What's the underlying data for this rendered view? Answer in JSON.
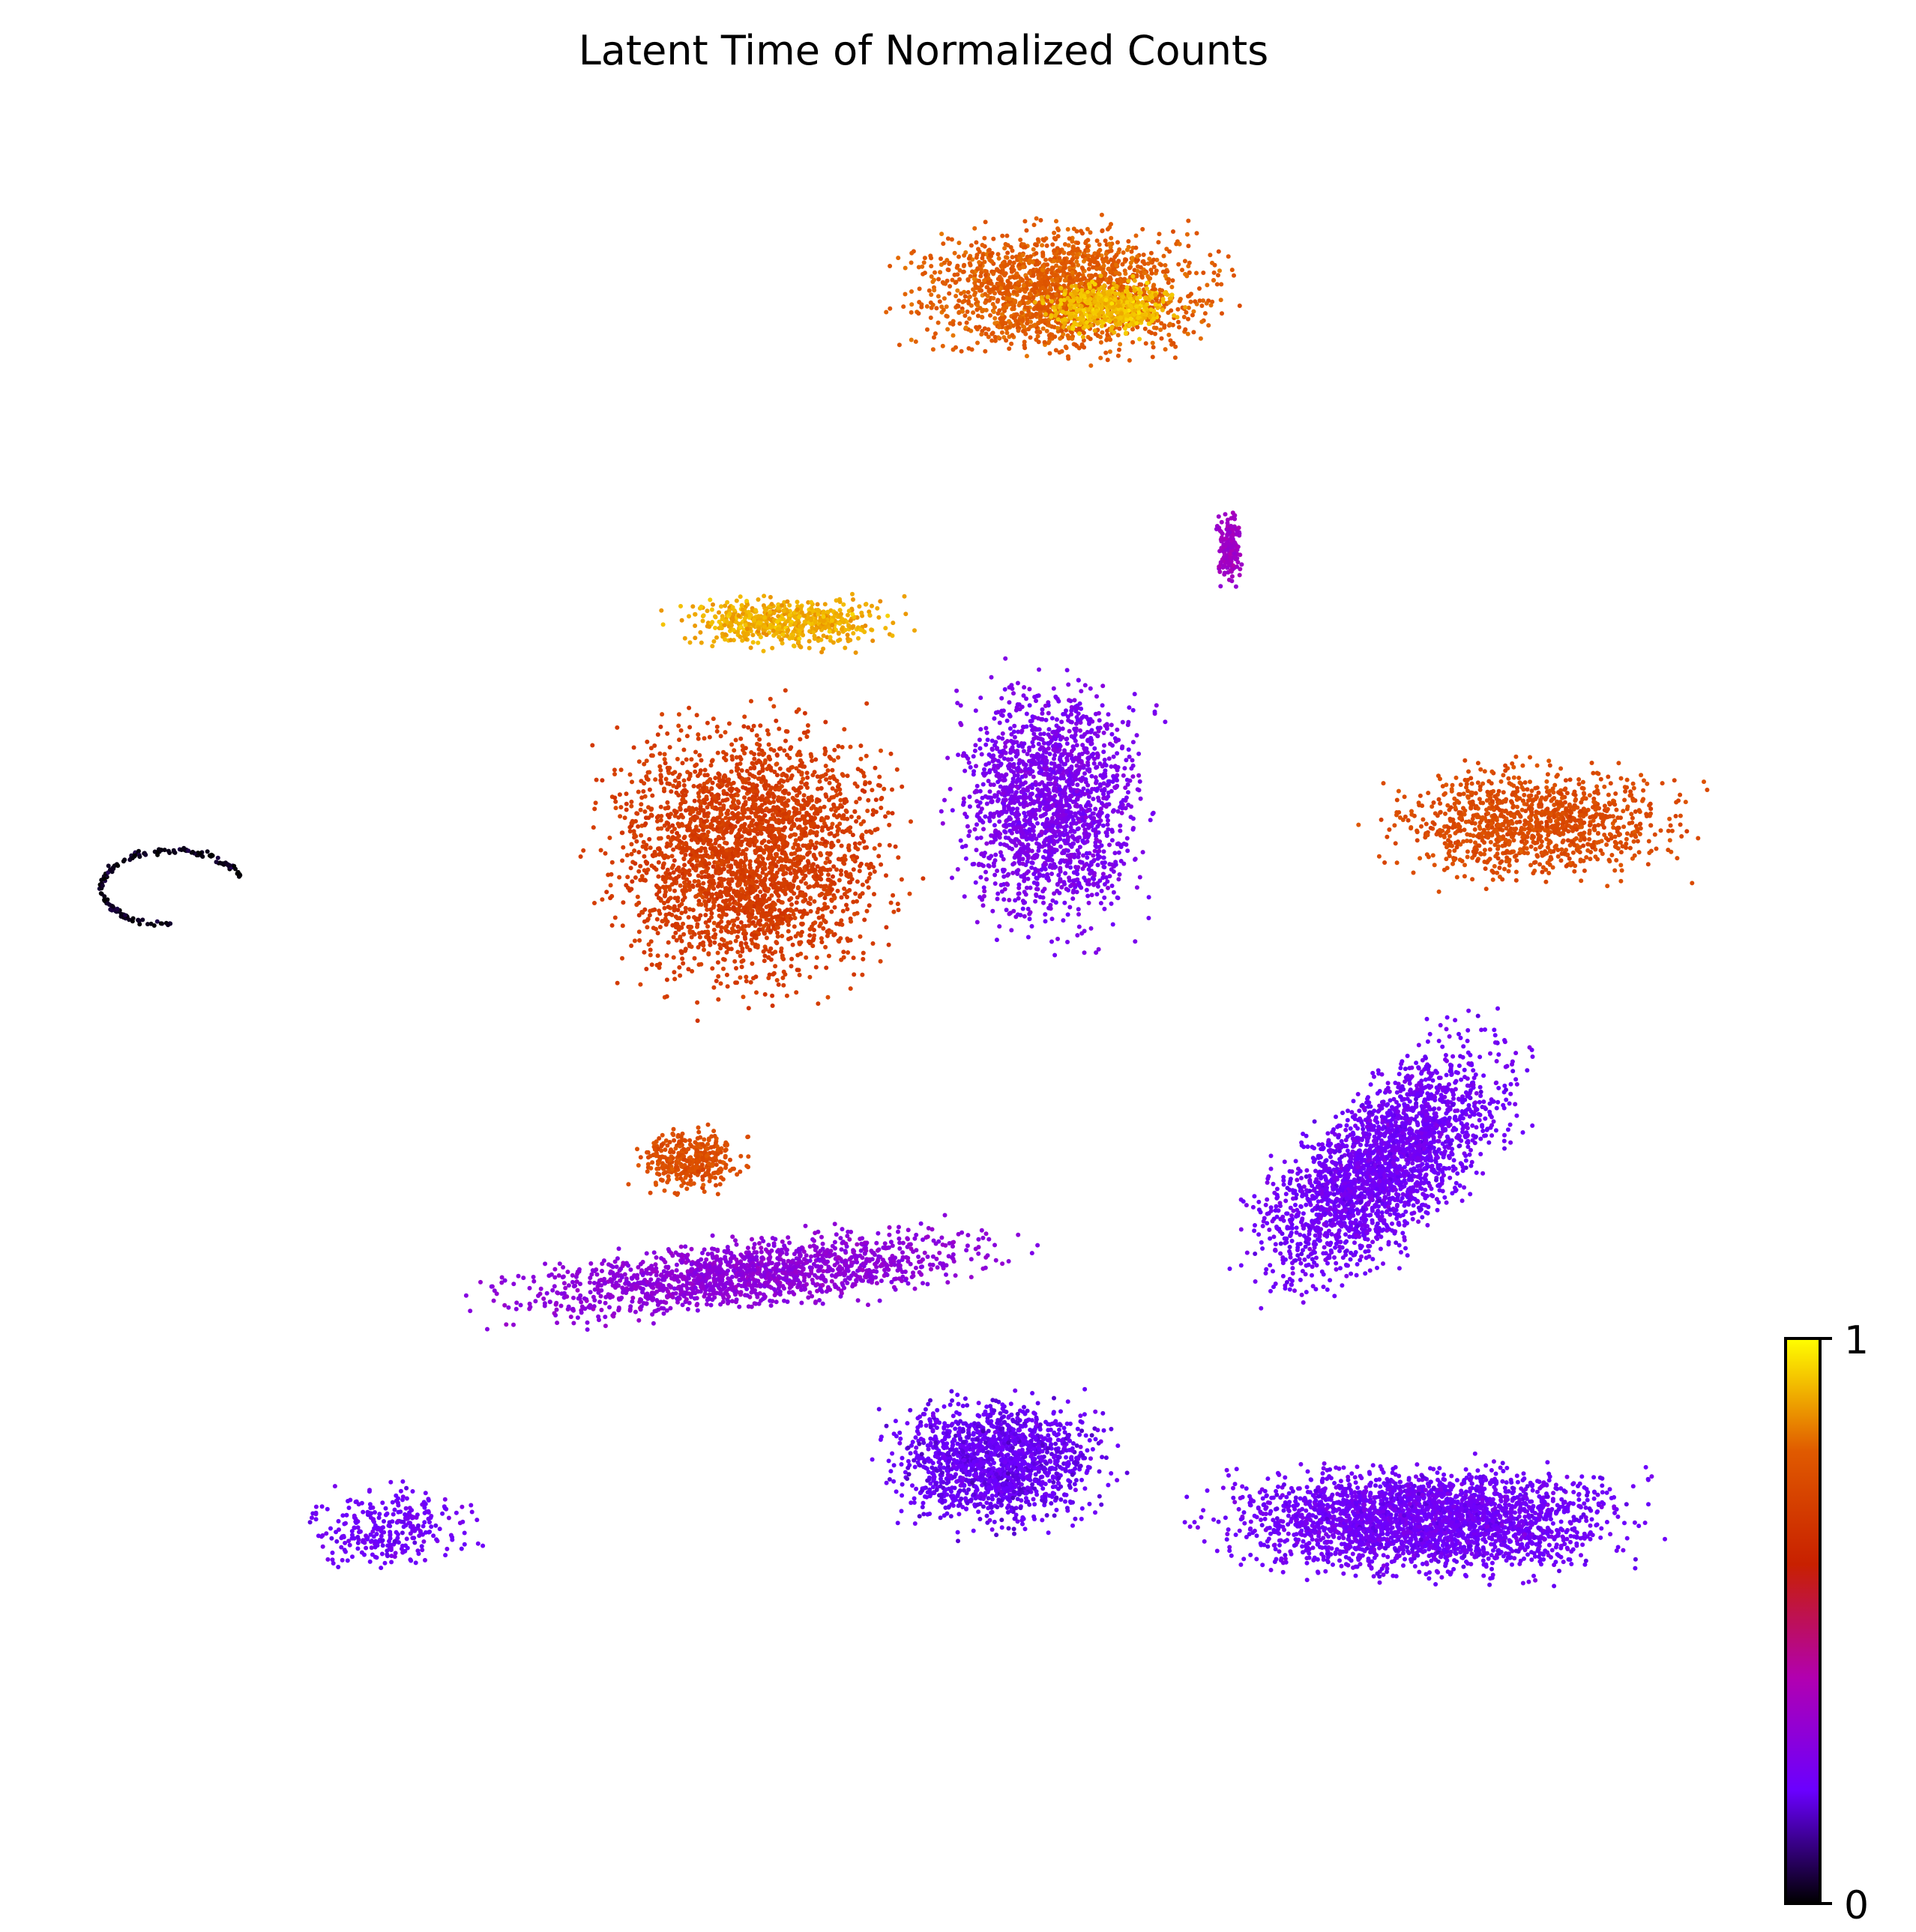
{
  "chart_data": {
    "type": "scatter",
    "title": "Latent Time of Normalized Counts",
    "xlabel": "",
    "ylabel": "",
    "axes_visible": false,
    "grid": false,
    "colorbar": {
      "label": "",
      "min": 0,
      "max": 1,
      "tick_labels": [
        "1",
        "0"
      ],
      "colormap": "gnuplot",
      "stops": [
        "#000000",
        "#6a00ff",
        "#b200b0",
        "#c82000",
        "#e05a00",
        "#ffff00"
      ],
      "placement": "right"
    },
    "clusters": [
      {
        "region": "far left small arc",
        "latent_time": 0.02
      },
      {
        "region": "top cluster",
        "latent_time": 0.8
      },
      {
        "region": "top cluster bright core",
        "latent_time": 0.92
      },
      {
        "region": "top cluster tail",
        "latent_time": 0.35
      },
      {
        "region": "upper center large mass",
        "latent_time": 0.7
      },
      {
        "region": "upper center bright band",
        "latent_time": 0.9
      },
      {
        "region": "upper center right lobe",
        "latent_time": 0.25
      },
      {
        "region": "small orange cluster left",
        "latent_time": 0.76
      },
      {
        "region": "right arc",
        "latent_time": 0.75
      },
      {
        "region": "right diagonal stream",
        "latent_time": 0.22
      },
      {
        "region": "middle left band",
        "latent_time": 0.3
      },
      {
        "region": "bottom left small clusters",
        "latent_time": 0.22
      },
      {
        "region": "bottom center clusters",
        "latent_time": 0.2
      },
      {
        "region": "bottom right streams",
        "latent_time": 0.22
      }
    ]
  }
}
